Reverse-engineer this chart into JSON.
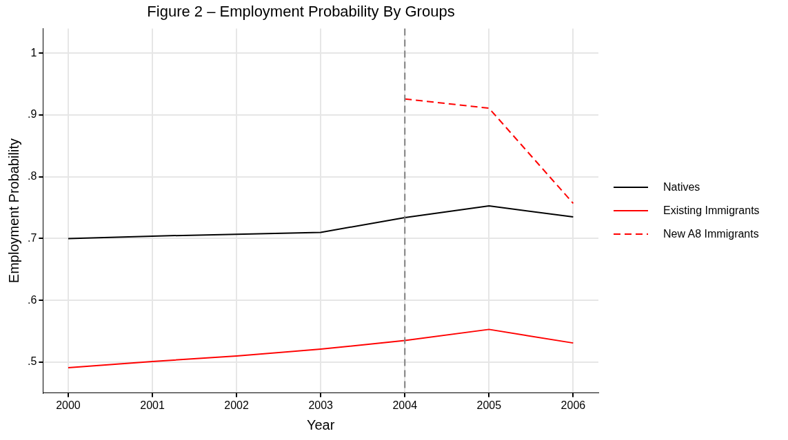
{
  "chart_data": {
    "type": "line",
    "title": "Figure 2 – Employment Probability By Groups",
    "xlabel": "Year",
    "ylabel": "Employment Probability",
    "x": [
      2000,
      2001,
      2002,
      2003,
      2004,
      2005,
      2006
    ],
    "series": [
      {
        "name": "Natives",
        "color": "#000000",
        "values": [
          0.7,
          0.704,
          0.707,
          0.71,
          0.734,
          0.753,
          0.735
        ]
      },
      {
        "name": "Existing Immigrants",
        "color": "#ff0000",
        "values": [
          0.491,
          0.501,
          0.51,
          0.521,
          0.535,
          0.553,
          0.531
        ]
      },
      {
        "name": "New A8 Immigrants",
        "color": "#ff0000",
        "line_style": "dashed",
        "values": [
          null,
          null,
          null,
          null,
          0.926,
          0.911,
          0.757
        ]
      }
    ],
    "xlim": [
      1999.7,
      2006.3
    ],
    "xticks": [
      2000,
      2001,
      2002,
      2003,
      2004,
      2005,
      2006
    ],
    "ylim": [
      0.45,
      1.04
    ],
    "yticks": [
      {
        "value": 0.5,
        "label": ".5"
      },
      {
        "value": 0.6,
        "label": ".6"
      },
      {
        "value": 0.7,
        "label": ".7"
      },
      {
        "value": 0.8,
        "label": ".8"
      },
      {
        "value": 0.9,
        "label": ".9"
      },
      1
    ],
    "ref_lines": [
      {
        "axis": "x",
        "value": 2004,
        "color": "#808080",
        "line_style": "dashed"
      }
    ],
    "grid": true,
    "legend": "right",
    "marker": "none",
    "line_style": "solid"
  }
}
